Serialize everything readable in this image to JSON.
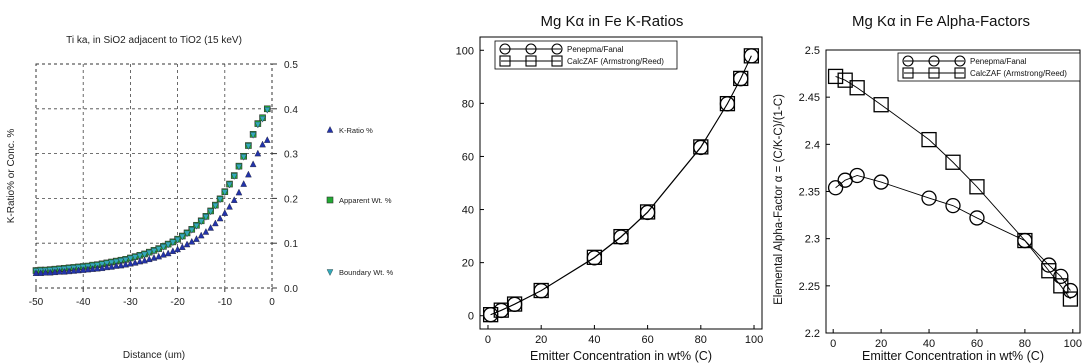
{
  "chart_data": [
    {
      "type": "scatter",
      "title": "Ti ka, in SiO2 adjacent to TiO2 (15 keV)",
      "xlabel": "Distance (um)",
      "ylabel": "K-Ratio% or Conc. %",
      "xlim": [
        -50,
        0
      ],
      "ylim": [
        0,
        0.5
      ],
      "xticks": [
        "-50",
        "-40",
        "-30",
        "-20",
        "-10",
        "0"
      ],
      "yticks": [
        "0.0",
        "0.1",
        "0.2",
        "0.3",
        "0.4",
        "0.5"
      ],
      "y_axis_side": "right",
      "grid": true,
      "grid_style": "dashed",
      "legend_position": "right",
      "colors": {
        "k_ratio": "#2233aa",
        "apparent": "#22aa33",
        "boundary": "#33aabb"
      },
      "series": [
        {
          "name": "K-Ratio %",
          "marker": "triangle-up",
          "x": [
            -50,
            -49,
            -48,
            -47,
            -46,
            -45,
            -44,
            -43,
            -42,
            -41,
            -40,
            -39,
            -38,
            -37,
            -36,
            -35,
            -34,
            -33,
            -32,
            -31,
            -30,
            -29,
            -28,
            -27,
            -26,
            -25,
            -24,
            -23,
            -22,
            -21,
            -20,
            -19,
            -18,
            -17,
            -16,
            -15,
            -14,
            -13,
            -12,
            -11,
            -10,
            -9,
            -8,
            -7,
            -6,
            -5,
            -4,
            -3,
            -2,
            -1
          ],
          "y": [
            0.033,
            0.033,
            0.034,
            0.034,
            0.035,
            0.036,
            0.036,
            0.037,
            0.038,
            0.039,
            0.04,
            0.041,
            0.042,
            0.043,
            0.044,
            0.046,
            0.047,
            0.049,
            0.05,
            0.052,
            0.054,
            0.056,
            0.059,
            0.061,
            0.064,
            0.067,
            0.07,
            0.074,
            0.077,
            0.082,
            0.086,
            0.091,
            0.097,
            0.103,
            0.109,
            0.117,
            0.125,
            0.134,
            0.144,
            0.155,
            0.167,
            0.181,
            0.196,
            0.213,
            0.232,
            0.253,
            0.276,
            0.3,
            0.32,
            0.33
          ]
        },
        {
          "name": "Apparent Wt. %",
          "marker": "square",
          "x": [
            -50,
            -49,
            -48,
            -47,
            -46,
            -45,
            -44,
            -43,
            -42,
            -41,
            -40,
            -39,
            -38,
            -37,
            -36,
            -35,
            -34,
            -33,
            -32,
            -31,
            -30,
            -29,
            -28,
            -27,
            -26,
            -25,
            -24,
            -23,
            -22,
            -21,
            -20,
            -19,
            -18,
            -17,
            -16,
            -15,
            -14,
            -13,
            -12,
            -11,
            -10,
            -9,
            -8,
            -7,
            -6,
            -5,
            -4,
            -3,
            -2,
            -1
          ],
          "y": [
            0.039,
            0.04,
            0.04,
            0.041,
            0.042,
            0.043,
            0.044,
            0.045,
            0.046,
            0.047,
            0.048,
            0.049,
            0.051,
            0.052,
            0.054,
            0.056,
            0.058,
            0.06,
            0.062,
            0.064,
            0.067,
            0.07,
            0.073,
            0.076,
            0.08,
            0.084,
            0.088,
            0.093,
            0.098,
            0.103,
            0.109,
            0.116,
            0.123,
            0.131,
            0.14,
            0.15,
            0.16,
            0.172,
            0.185,
            0.199,
            0.215,
            0.232,
            0.251,
            0.272,
            0.294,
            0.318,
            0.343,
            0.367,
            0.38,
            0.4
          ]
        },
        {
          "name": "Boundary Wt. %",
          "marker": "triangle-down",
          "x": [
            -50,
            -49,
            -48,
            -47,
            -46,
            -45,
            -44,
            -43,
            -42,
            -41,
            -40,
            -39,
            -38,
            -37,
            -36,
            -35,
            -34,
            -33,
            -32,
            -31,
            -30,
            -29,
            -28,
            -27,
            -26,
            -25,
            -24,
            -23,
            -22,
            -21,
            -20,
            -19,
            -18,
            -17,
            -16,
            -15,
            -14,
            -13,
            -12,
            -11,
            -10,
            -9,
            -8,
            -7,
            -6,
            -5,
            -4,
            -3,
            -2,
            -1
          ],
          "y": [
            0.038,
            0.039,
            0.039,
            0.04,
            0.041,
            0.042,
            0.043,
            0.044,
            0.045,
            0.046,
            0.047,
            0.048,
            0.05,
            0.051,
            0.053,
            0.055,
            0.057,
            0.059,
            0.061,
            0.063,
            0.066,
            0.069,
            0.072,
            0.075,
            0.079,
            0.083,
            0.087,
            0.092,
            0.097,
            0.102,
            0.108,
            0.115,
            0.122,
            0.13,
            0.139,
            0.149,
            0.159,
            0.171,
            0.184,
            0.198,
            0.214,
            0.231,
            0.25,
            0.271,
            0.293,
            0.317,
            0.342,
            0.365,
            0.378,
            0.398
          ]
        }
      ]
    },
    {
      "type": "line",
      "title": "Mg Kα in Fe K-Ratios",
      "xlabel": "Emitter Concentration in wt% (C)",
      "ylabel": "",
      "xlim": [
        -3,
        103
      ],
      "ylim": [
        -5,
        105
      ],
      "xticks": [
        0,
        20,
        40,
        60,
        80,
        100
      ],
      "yticks": [
        0,
        20,
        40,
        60,
        80,
        100
      ],
      "grid": false,
      "legend_position": "top-left",
      "series": [
        {
          "name": "Penepma/Fanal",
          "marker": "circle",
          "x": [
            1,
            5,
            10,
            20,
            40,
            50,
            60,
            80,
            90,
            95,
            99
          ],
          "y": [
            0.4,
            2.0,
            4.3,
            9.4,
            21.8,
            29.6,
            38.9,
            63.4,
            79.8,
            89.3,
            97.9
          ]
        },
        {
          "name": "CalcZAF (Armstrong/Reed)",
          "marker": "square",
          "x": [
            1,
            5,
            10,
            20,
            40,
            50,
            60,
            80,
            90,
            95,
            99
          ],
          "y": [
            0.4,
            2.1,
            4.4,
            9.5,
            22.0,
            29.8,
            39.1,
            63.6,
            79.9,
            89.4,
            97.9
          ]
        }
      ]
    },
    {
      "type": "line",
      "title": "Mg Kα in Fe Alpha-Factors",
      "xlabel": "Emitter Concentration in wt% (C)",
      "ylabel": "Elemental Alpha-Factor α = (C/K-C)/(1-C)",
      "xlim": [
        -3,
        103
      ],
      "ylim": [
        2.2,
        2.5
      ],
      "xticks": [
        0,
        20,
        40,
        60,
        80,
        100
      ],
      "yticks": [
        "2.2",
        "2.25",
        "2.3",
        "2.35",
        "2.4",
        "2.45",
        "2.5"
      ],
      "grid": false,
      "legend_position": "top-right",
      "series": [
        {
          "name": "Penepma/Fanal",
          "marker": "circle",
          "x": [
            1,
            5,
            10,
            20,
            40,
            50,
            60,
            80,
            90,
            95,
            99
          ],
          "y": [
            2.354,
            2.362,
            2.367,
            2.36,
            2.343,
            2.335,
            2.322,
            2.298,
            2.272,
            2.26,
            2.245
          ]
        },
        {
          "name": "CalcZAF (Armstrong/Reed)",
          "marker": "square",
          "x": [
            1,
            5,
            10,
            20,
            40,
            50,
            60,
            80,
            90,
            95,
            99
          ],
          "y": [
            2.472,
            2.468,
            2.46,
            2.442,
            2.405,
            2.381,
            2.355,
            2.298,
            2.266,
            2.25,
            2.236
          ]
        }
      ]
    }
  ]
}
